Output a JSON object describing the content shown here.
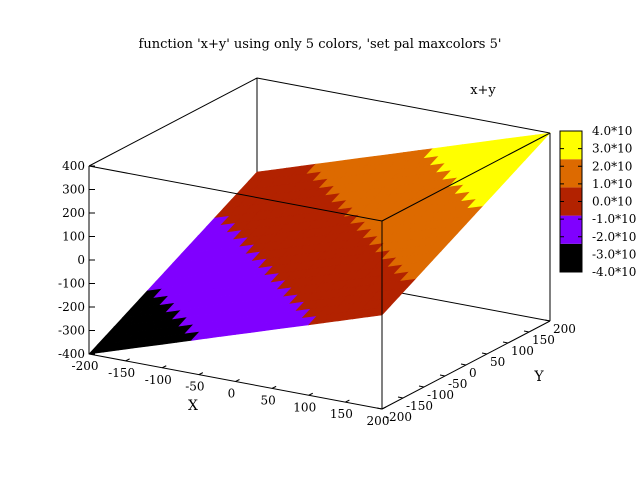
{
  "chart_data": {
    "type": "surface",
    "title": "function 'x+y' using only 5 colors, 'set pal maxcolors 5'",
    "function": "x+y",
    "key_label": "x+y",
    "xlabel": "X",
    "ylabel": "Y",
    "xlim": [
      -200,
      200
    ],
    "ylim": [
      -200,
      200
    ],
    "zlim": [
      -400,
      400
    ],
    "x_ticks": [
      "-200",
      "-150",
      "-100",
      "-50",
      "0",
      "50",
      "100",
      "150",
      "200"
    ],
    "y_ticks": [
      "-200",
      "-150",
      "-100",
      "-50",
      "0",
      "50",
      "100",
      "150",
      "200"
    ],
    "z_ticks": [
      "-400",
      "-300",
      "-200",
      "-100",
      "0",
      "100",
      "200",
      "300",
      "400"
    ],
    "palette_colors": [
      "#000000",
      "#8000ff",
      "#b22200",
      "#dd6a00",
      "#ffff00"
    ],
    "colorbar": {
      "range": [
        -400,
        400
      ],
      "tick_labels": [
        "-4.0*10",
        "-3.0*10",
        "-2.0*10",
        "-1.0*10",
        "0.0*10",
        "1.0*10",
        "2.0*10",
        "3.0*10",
        "4.0*10"
      ]
    }
  }
}
